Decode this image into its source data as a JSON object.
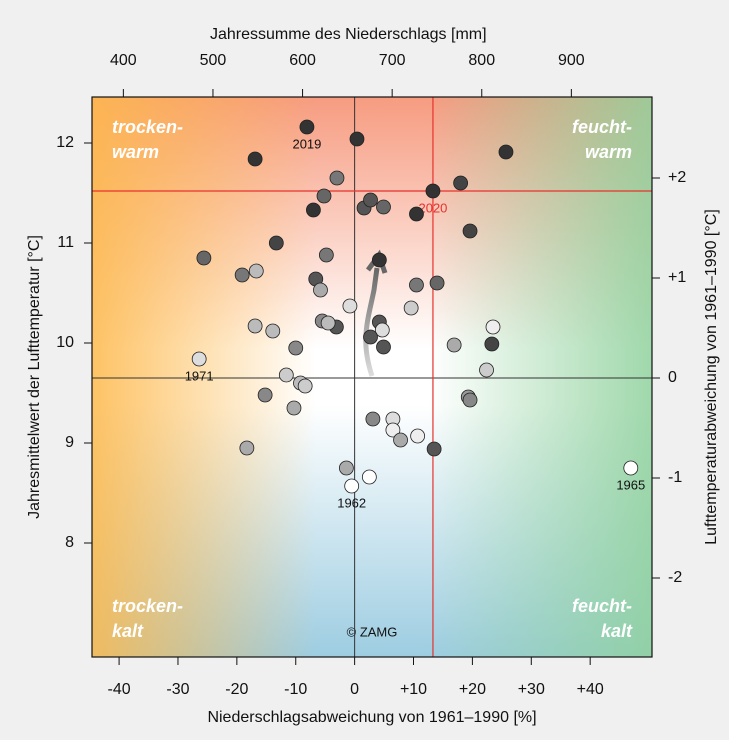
{
  "chart_data": {
    "type": "scatter",
    "x_label": "Niederschlagsabweichung von 1961–1990 [%]",
    "x2_label": "Jahressumme des Niederschlags [mm]",
    "y_label": "Jahresmittelwert der Lufttemperatur [°C]",
    "y2_label": "Lufttemperaturabweichung von 1961–1990 [°C]",
    "xlim": [
      -44.6,
      50.5
    ],
    "xticks": [
      -40,
      -30,
      -20,
      -10,
      0,
      {
        "value": 10,
        "label": "+10"
      },
      {
        "value": 20,
        "label": "+20"
      },
      {
        "value": 30,
        "label": "+30"
      },
      {
        "value": 40,
        "label": "+40"
      }
    ],
    "x2lim": [
      365,
      990
    ],
    "x2ticks": [
      400,
      500,
      600,
      700,
      800,
      900
    ],
    "ylim": [
      6.86,
      12.46
    ],
    "yticks": [
      8,
      9,
      10,
      11,
      12
    ],
    "y2lim": [
      -2.79,
      2.81
    ],
    "y2ticks": [
      {
        "value": 2,
        "label": "+2"
      },
      {
        "value": 1,
        "label": "+1"
      },
      0,
      -1,
      -2
    ],
    "reference": {
      "x": 13.3,
      "y": 11.52,
      "color": "#e8322d"
    },
    "quadrants": [
      [
        "trocken-",
        "warm"
      ],
      [
        "feucht-",
        "warm"
      ],
      [
        "trocken-",
        "kalt"
      ],
      [
        "feucht-",
        "kalt"
      ]
    ],
    "annotation": "© ZAMG",
    "x": [
      -8.1,
      0.4,
      -16.9,
      25.7,
      -3.0,
      -5.2,
      13.3,
      18.0,
      -7.0,
      1.6,
      2.7,
      4.9,
      10.5,
      -13.3,
      19.6,
      -25.6,
      -4.8,
      4.2,
      -19.1,
      -16.7,
      -6.6,
      -5.8,
      10.5,
      14.0,
      -0.8,
      9.6,
      -3.1,
      -5.5,
      -4.5,
      -16.9,
      -13.9,
      4.2,
      4.7,
      2.7,
      4.9,
      -10.0,
      16.9,
      23.3,
      23.5,
      -26.4,
      -11.6,
      -9.2,
      -8.4,
      -15.2,
      -10.3,
      22.4,
      19.3,
      19.6,
      3.1,
      6.5,
      6.5,
      7.8,
      10.7,
      13.5,
      -18.3,
      -1.4,
      2.5,
      -0.5,
      46.9
    ],
    "values": [
      12.16,
      12.04,
      11.84,
      11.91,
      11.65,
      11.47,
      11.52,
      11.6,
      11.33,
      11.35,
      11.43,
      11.36,
      11.29,
      11.0,
      11.12,
      10.85,
      10.88,
      10.83,
      10.68,
      10.72,
      10.64,
      10.53,
      10.58,
      10.6,
      10.37,
      10.35,
      10.16,
      10.22,
      10.2,
      10.17,
      10.12,
      10.21,
      10.13,
      10.06,
      9.96,
      9.95,
      9.98,
      9.99,
      10.16,
      9.84,
      9.68,
      9.6,
      9.57,
      9.48,
      9.35,
      9.73,
      9.46,
      9.43,
      9.24,
      9.24,
      9.13,
      9.03,
      9.07,
      8.94,
      8.95,
      8.75,
      8.66,
      8.57,
      8.75
    ],
    "colors": [
      "#333",
      "#333",
      "#333",
      "#333",
      "#777",
      "#666",
      "#333",
      "#444",
      "#333",
      "#555",
      "#555",
      "#666",
      "#333",
      "#444",
      "#444",
      "#666",
      "#777",
      "#333",
      "#777",
      "#bbb",
      "#555",
      "#aaa",
      "#777",
      "#666",
      "#ddd",
      "#ccc",
      "#555",
      "#888",
      "#bbb",
      "#bbb",
      "#bbb",
      "#555",
      "#ddd",
      "#555",
      "#555",
      "#888",
      "#aaa",
      "#444",
      "#eee",
      "#ddd",
      "#ccc",
      "#bbb",
      "#ccc",
      "#888",
      "#aaa",
      "#ccc",
      "#999",
      "#888",
      "#888",
      "#ddd",
      "#eee",
      "#aaa",
      "#eee",
      "#555",
      "#aaa",
      "#aaa",
      "#fff",
      "#fff",
      "#fff"
    ],
    "labels": [
      "2019",
      null,
      null,
      null,
      null,
      null,
      "2020",
      null,
      null,
      null,
      null,
      null,
      null,
      null,
      null,
      null,
      null,
      null,
      null,
      null,
      null,
      null,
      null,
      null,
      null,
      null,
      null,
      null,
      null,
      null,
      null,
      null,
      null,
      null,
      null,
      null,
      null,
      null,
      null,
      "1971",
      null,
      null,
      null,
      null,
      null,
      null,
      null,
      null,
      null,
      null,
      null,
      null,
      null,
      null,
      null,
      null,
      null,
      "1962",
      "1965"
    ]
  }
}
